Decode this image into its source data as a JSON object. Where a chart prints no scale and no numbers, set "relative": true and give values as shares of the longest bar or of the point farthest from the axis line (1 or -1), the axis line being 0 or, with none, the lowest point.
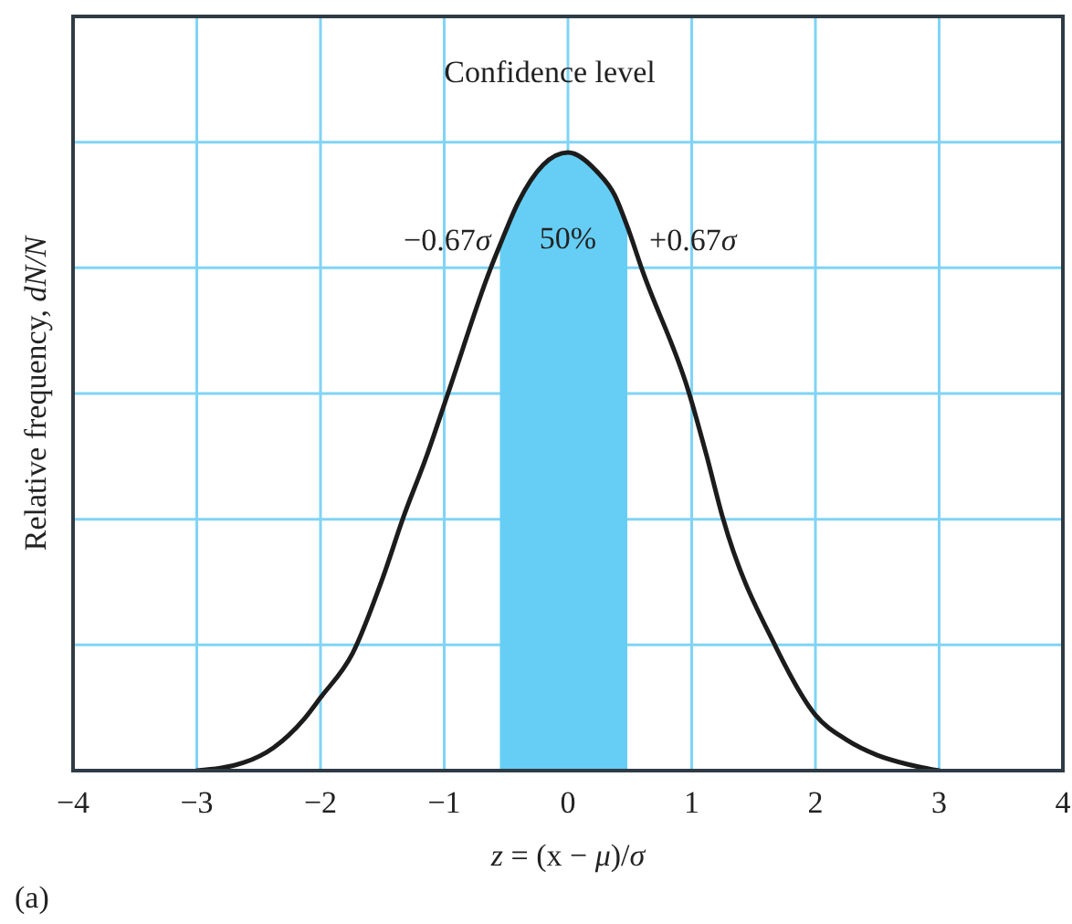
{
  "chart_data": {
    "type": "line",
    "title": "Confidence level",
    "xlabel": "z = (x − μ)/σ",
    "ylabel": "Relative frequency, dN/N",
    "relative": true,
    "xlim": [
      -4,
      4
    ],
    "xticks": [
      -4,
      -3,
      -2,
      -1,
      0,
      1,
      2,
      3,
      4
    ],
    "grid": true,
    "annotations": [
      {
        "text": "−0.67σ",
        "x": -0.55,
        "y": 0.86
      },
      "50%",
      {
        "text": "+0.67σ",
        "x": 0.48,
        "y": 0.86
      },
      "(a)"
    ],
    "series": [
      {
        "type": "area",
        "color": "#66cef5",
        "x": [
          -0.55,
          -0.4,
          -0.2,
          0,
          0.23,
          0.38,
          0.48
        ],
        "values": [
          0.85,
          0.92,
          0.98,
          1,
          0.97,
          0.93,
          0.88
        ]
      },
      {
        "color": "#1c1c1c",
        "x": [
          -3,
          -2.62,
          -2.38,
          -2.13,
          -2,
          -1.74,
          -1.5,
          -1.33,
          -1.14,
          -0.97,
          -0.63,
          -0.55,
          -0.4,
          -0.2,
          0,
          0.23,
          0.38,
          0.48,
          0.6,
          0.98,
          1.12,
          1.25,
          1.68,
          2,
          2.25,
          2.5,
          2.75,
          3
        ],
        "values": [
          0,
          0.013,
          0.037,
          0.084,
          0.118,
          0.19,
          0.31,
          0.41,
          0.51,
          0.61,
          0.81,
          0.85,
          0.92,
          0.98,
          1,
          0.97,
          0.93,
          0.88,
          0.81,
          0.61,
          0.51,
          0.41,
          0.2,
          0.09,
          0.05,
          0.025,
          0.01,
          0
        ]
      }
    ]
  }
}
